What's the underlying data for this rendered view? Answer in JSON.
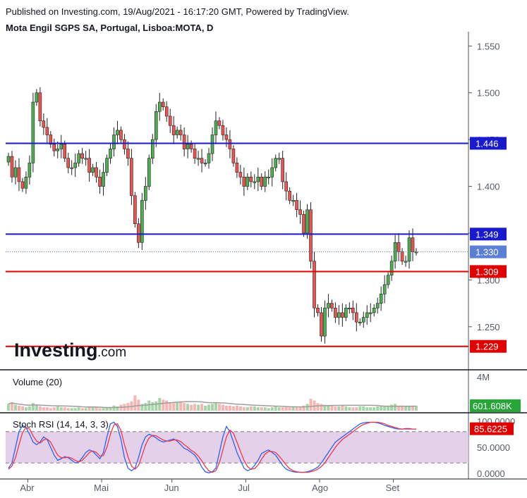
{
  "header": {
    "published": "Published on Investing.com, 19/Aug/2021 - 16:17:20 GMT, Powered by TradingView.",
    "symbol": "Mota Engil SGPS SA, Portugal, Lisboa:MOTA, D"
  },
  "logo": {
    "word": "Investing",
    "suffix": ".com"
  },
  "colors": {
    "up": "#4caf50",
    "down": "#ef5350",
    "blue_line": "#1a1acd",
    "red_line": "#e00000",
    "current": "#5b7fd4",
    "vol_tag": "#26a637",
    "rsi_tag": "#e00000",
    "rsi_band": "#e1c8e6"
  },
  "chart_data": [
    {
      "type": "candlestick",
      "title": "Mota Engil SGPS SA, Portugal, Lisboa:MOTA, D",
      "x_axis": {
        "tick_labels": [
          "Abr",
          "Mai",
          "Jun",
          "Jul",
          "Ago",
          "Set"
        ]
      },
      "y_axis": {
        "tick_labels": [
          "1.550",
          "1.500",
          "1.450",
          "1.400",
          "1.350",
          "1.300",
          "1.250"
        ],
        "range": [
          1.219,
          1.554
        ]
      },
      "horizontal_lines": [
        {
          "value": 1.446,
          "label": "1.446",
          "color": "blue"
        },
        {
          "value": 1.349,
          "label": "1.349",
          "color": "blue"
        },
        {
          "value": 1.309,
          "label": "1.309",
          "color": "red"
        },
        {
          "value": 1.229,
          "label": "1.229",
          "color": "red"
        }
      ],
      "last_price": {
        "value": 1.33,
        "label": "1.330"
      },
      "closes": [
        1.432,
        1.41,
        1.42,
        1.405,
        1.398,
        1.41,
        1.425,
        1.49,
        1.5,
        1.47,
        1.463,
        1.455,
        1.445,
        1.438,
        1.44,
        1.445,
        1.43,
        1.42,
        1.42,
        1.425,
        1.435,
        1.43,
        1.43,
        1.415,
        1.42,
        1.41,
        1.4,
        1.415,
        1.43,
        1.44,
        1.455,
        1.46,
        1.45,
        1.44,
        1.43,
        1.39,
        1.36,
        1.34,
        1.385,
        1.4,
        1.43,
        1.45,
        1.48,
        1.49,
        1.485,
        1.475,
        1.465,
        1.455,
        1.46,
        1.455,
        1.44,
        1.445,
        1.44,
        1.43,
        1.43,
        1.425,
        1.425,
        1.435,
        1.455,
        1.47,
        1.465,
        1.455,
        1.45,
        1.44,
        1.425,
        1.415,
        1.41,
        1.4,
        1.41,
        1.405,
        1.405,
        1.41,
        1.4,
        1.41,
        1.41,
        1.42,
        1.43,
        1.43,
        1.405,
        1.395,
        1.385,
        1.385,
        1.375,
        1.37,
        1.35,
        1.375,
        1.32,
        1.27,
        1.265,
        1.24,
        1.27,
        1.275,
        1.27,
        1.26,
        1.265,
        1.26,
        1.27,
        1.27,
        1.265,
        1.255,
        1.255,
        1.26,
        1.265,
        1.265,
        1.27,
        1.275,
        1.285,
        1.295,
        1.305,
        1.32,
        1.34,
        1.33,
        1.32,
        1.32,
        1.345,
        1.33,
        1.33
      ],
      "volume": {
        "title": "Volume (20)",
        "tick_labels": [
          "4M"
        ],
        "last_label": "601.608K",
        "values_millions": [
          0.8,
          1.0,
          0.7,
          0.6,
          0.5,
          0.4,
          0.5,
          0.9,
          0.7,
          0.5,
          0.4,
          0.4,
          0.3,
          0.4,
          0.5,
          0.4,
          0.4,
          0.3,
          0.3,
          0.3,
          0.4,
          0.3,
          0.3,
          0.5,
          0.4,
          0.4,
          0.3,
          0.3,
          0.4,
          0.4,
          0.6,
          0.5,
          0.7,
          0.8,
          0.9,
          1.1,
          1.8,
          1.3,
          0.8,
          0.9,
          1.2,
          1.0,
          1.1,
          1.5,
          1.3,
          1.2,
          1.0,
          0.9,
          1.0,
          1.1,
          0.9,
          0.8,
          0.7,
          0.8,
          0.7,
          0.8,
          0.6,
          0.7,
          0.8,
          0.9,
          0.8,
          0.7,
          0.6,
          0.6,
          0.5,
          0.6,
          0.5,
          0.4,
          0.4,
          0.5,
          0.5,
          0.4,
          0.4,
          0.4,
          0.3,
          0.4,
          0.5,
          0.4,
          0.4,
          0.5,
          0.4,
          0.5,
          0.5,
          0.4,
          0.6,
          0.8,
          1.4,
          1.2,
          0.9,
          0.8,
          0.7,
          0.6,
          0.6,
          0.5,
          0.5,
          0.6,
          0.5,
          0.4,
          0.4,
          0.4,
          0.5,
          0.5,
          0.4,
          0.4,
          0.4,
          0.5,
          0.5,
          0.6,
          0.6,
          0.7,
          0.8,
          0.6,
          0.6,
          0.5,
          0.6,
          0.6,
          0.6
        ]
      },
      "stoch_rsi": {
        "title": "Stoch RSI (14, 14, 3, 3)",
        "tick_labels": [
          "100.0000",
          "50.0000",
          "0.0000"
        ],
        "last_label": "85.6225",
        "bands": [
          80,
          20
        ],
        "k": [
          10,
          20,
          50,
          80,
          92,
          88,
          75,
          60,
          55,
          60,
          70,
          65,
          50,
          35,
          25,
          28,
          32,
          30,
          25,
          20,
          22,
          30,
          40,
          45,
          42,
          35,
          28,
          40,
          70,
          95,
          98,
          90,
          65,
          30,
          10,
          5,
          10,
          30,
          55,
          70,
          75,
          72,
          68,
          63,
          60,
          62,
          64,
          66,
          62,
          55,
          48,
          45,
          40,
          35,
          25,
          12,
          3,
          1,
          3,
          10,
          40,
          70,
          90,
          80,
          60,
          40,
          25,
          10,
          5,
          8,
          15,
          25,
          38,
          42,
          45,
          40,
          35,
          25,
          15,
          8,
          5,
          3,
          2,
          2,
          2,
          3,
          5,
          8,
          12,
          20,
          30,
          40,
          50,
          60,
          65,
          70,
          75,
          80,
          85,
          90,
          95,
          97,
          98,
          98,
          98,
          97,
          95,
          92,
          90,
          88,
          86,
          85,
          85,
          86,
          86,
          85,
          85
        ],
        "d": [
          8,
          14,
          30,
          55,
          78,
          88,
          85,
          72,
          62,
          58,
          64,
          66,
          60,
          47,
          35,
          30,
          30,
          31,
          29,
          25,
          22,
          25,
          32,
          40,
          43,
          40,
          33,
          34,
          50,
          75,
          93,
          95,
          82,
          55,
          32,
          14,
          8,
          15,
          34,
          55,
          68,
          73,
          72,
          68,
          64,
          62,
          62,
          64,
          64,
          61,
          55,
          50,
          44,
          40,
          33,
          24,
          13,
          5,
          2,
          5,
          20,
          45,
          70,
          83,
          77,
          60,
          42,
          25,
          13,
          8,
          9,
          16,
          27,
          37,
          42,
          42,
          40,
          33,
          25,
          16,
          9,
          5,
          3,
          2,
          2,
          2,
          3,
          5,
          8,
          13,
          20,
          30,
          40,
          50,
          58,
          65,
          70,
          75,
          80,
          85,
          90,
          94,
          96,
          98,
          98,
          98,
          97,
          95,
          92,
          90,
          88,
          86,
          85,
          85,
          85,
          85,
          85
        ]
      }
    }
  ]
}
